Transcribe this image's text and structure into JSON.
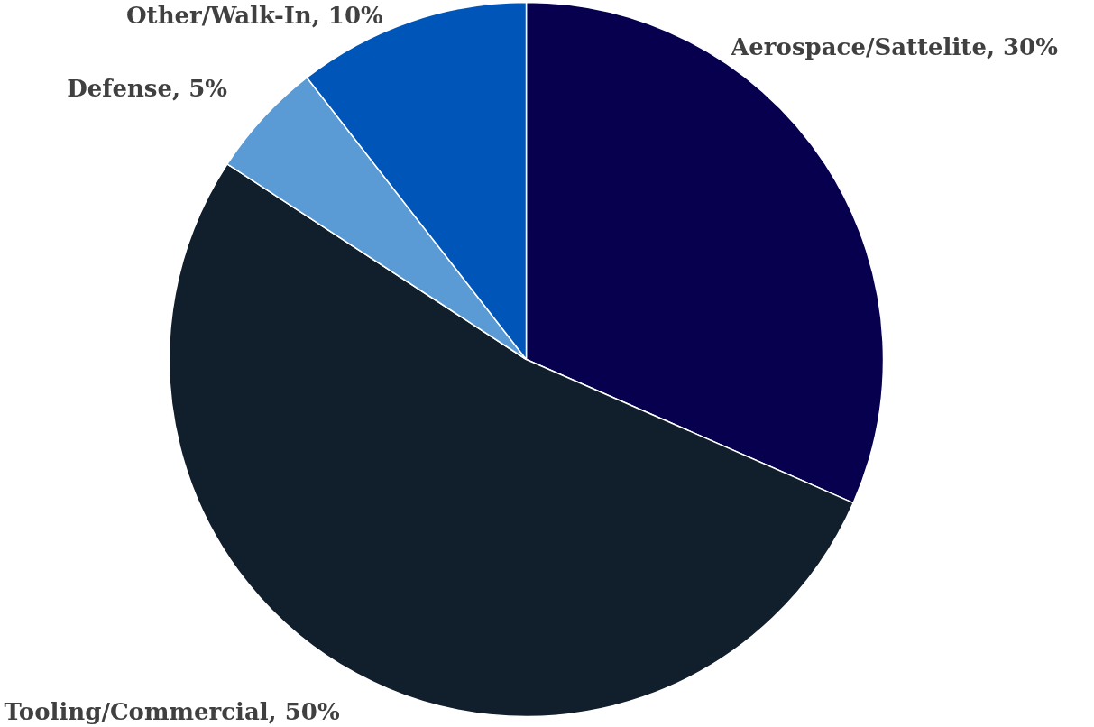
{
  "chart_data": {
    "type": "pie",
    "categories": [
      "Aerospace/Sattelite",
      "Tooling/Commercial",
      "Defense",
      "Other/Walk-In"
    ],
    "values": [
      30,
      50,
      5,
      10
    ],
    "value_labels": [
      "30%",
      "50%",
      "5%",
      "10%"
    ],
    "colors": [
      "#06004f",
      "#111e2c",
      "#5b9bd5",
      "#0056b8"
    ]
  }
}
